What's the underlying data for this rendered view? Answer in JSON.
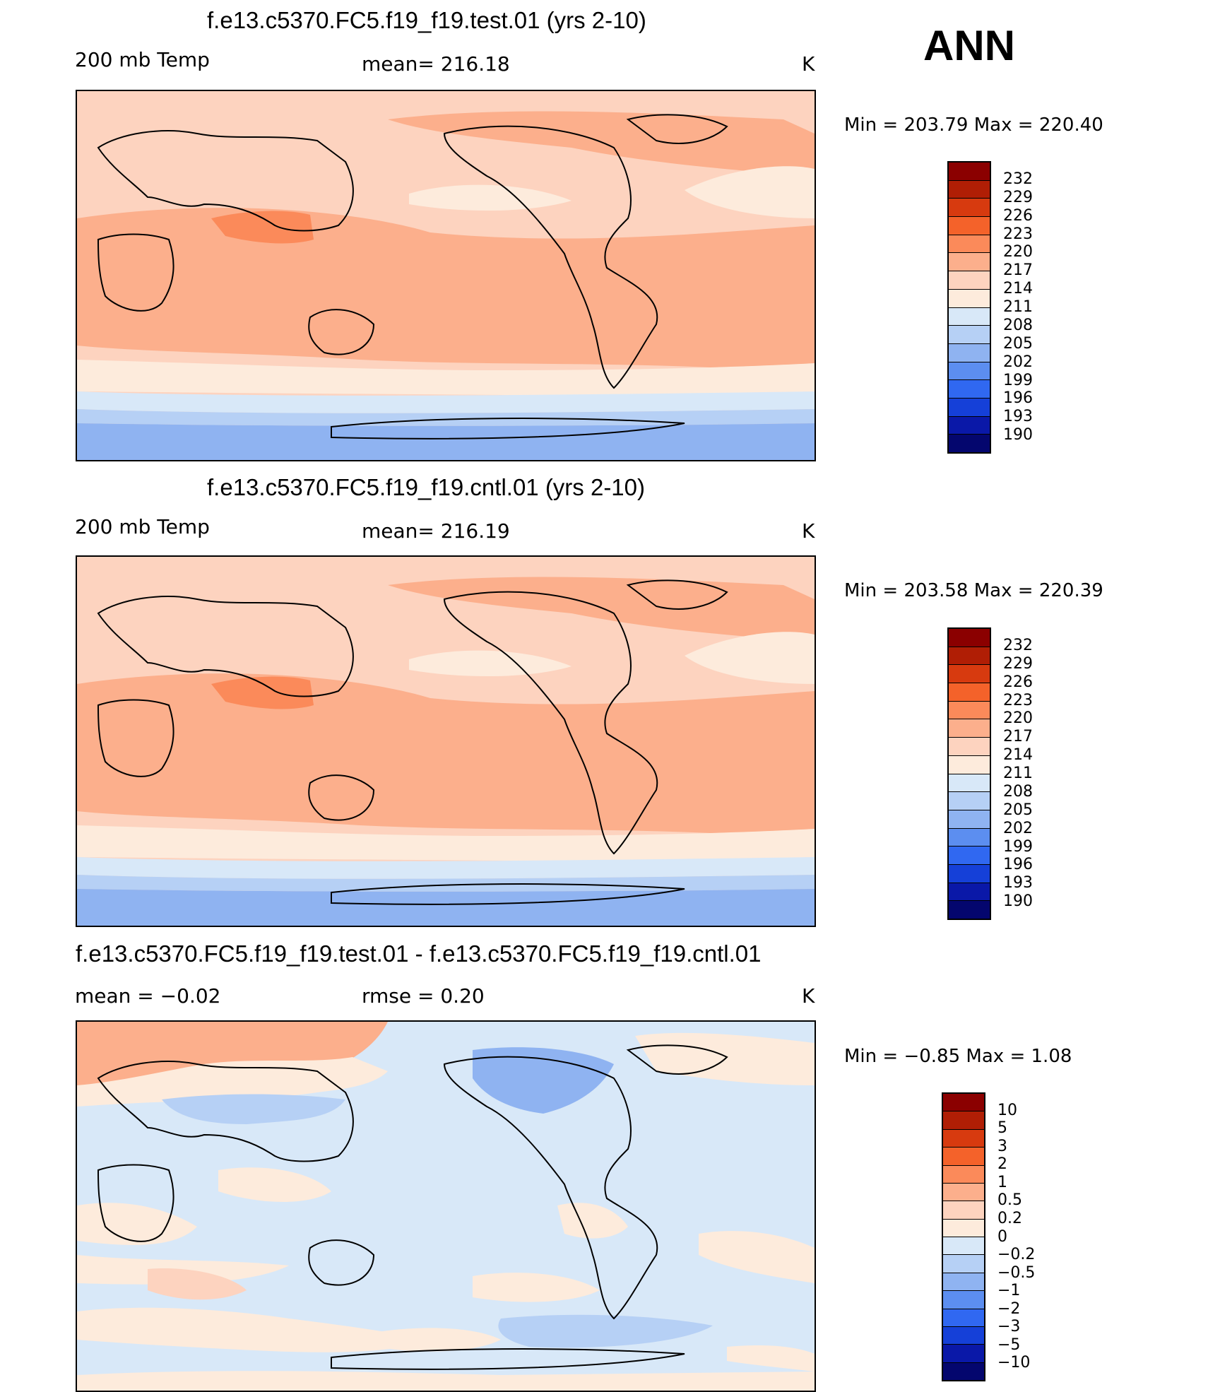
{
  "season": "ANN",
  "panels": [
    {
      "title": "f.e13.c5370.FC5.f19_f19.test.01 (yrs 2-10)",
      "left_label": "200 mb Temp",
      "mid_label": "mean= 216.18",
      "units": "K",
      "min_label": "Min",
      "min_value": "203.79",
      "max_label": "Max",
      "max_value": "220.40",
      "colorbar_labels": [
        "232",
        "229",
        "226",
        "223",
        "220",
        "217",
        "214",
        "211",
        "208",
        "205",
        "202",
        "199",
        "196",
        "193",
        "190"
      ]
    },
    {
      "title": "f.e13.c5370.FC5.f19_f19.cntl.01 (yrs 2-10)",
      "left_label": "200 mb Temp",
      "mid_label": "mean= 216.19",
      "units": "K",
      "min_label": "Min",
      "min_value": "203.58",
      "max_label": "Max",
      "max_value": "220.39",
      "colorbar_labels": [
        "232",
        "229",
        "226",
        "223",
        "220",
        "217",
        "214",
        "211",
        "208",
        "205",
        "202",
        "199",
        "196",
        "193",
        "190"
      ]
    },
    {
      "title": "f.e13.c5370.FC5.f19_f19.test.01 - f.e13.c5370.FC5.f19_f19.cntl.01",
      "left_label": "mean = −0.02",
      "mid_label": "rmse = 0.20",
      "units": "K",
      "min_label": "Min",
      "min_value": "−0.85",
      "max_label": "Max",
      "max_value": "1.08",
      "colorbar_labels": [
        "10",
        "5",
        "3",
        "2",
        "1",
        "0.5",
        "0.2",
        "0",
        "−0.2",
        "−0.5",
        "−1",
        "−2",
        "−3",
        "−5",
        "−10"
      ]
    }
  ],
  "colors": {
    "abs_scale": [
      "#8b0000",
      "#b01e05",
      "#d73a0f",
      "#f4622a",
      "#fb8a5a",
      "#fcaf8c",
      "#fdd3bf",
      "#fdebdc",
      "#d8e8f8",
      "#b6d0f5",
      "#8fb3f1",
      "#5c8ef0",
      "#3068f1",
      "#1540d8",
      "#0a18a8",
      "#04066e"
    ],
    "diff_scale": [
      "#8b0000",
      "#b01e05",
      "#d73a0f",
      "#f4622a",
      "#fb8a5a",
      "#fcaf8c",
      "#fdd3bf",
      "#fdebdc",
      "#d8e8f8",
      "#b6d0f5",
      "#8fb3f1",
      "#5c8ef0",
      "#3068f1",
      "#1540d8",
      "#0a18a8",
      "#04066e"
    ]
  }
}
